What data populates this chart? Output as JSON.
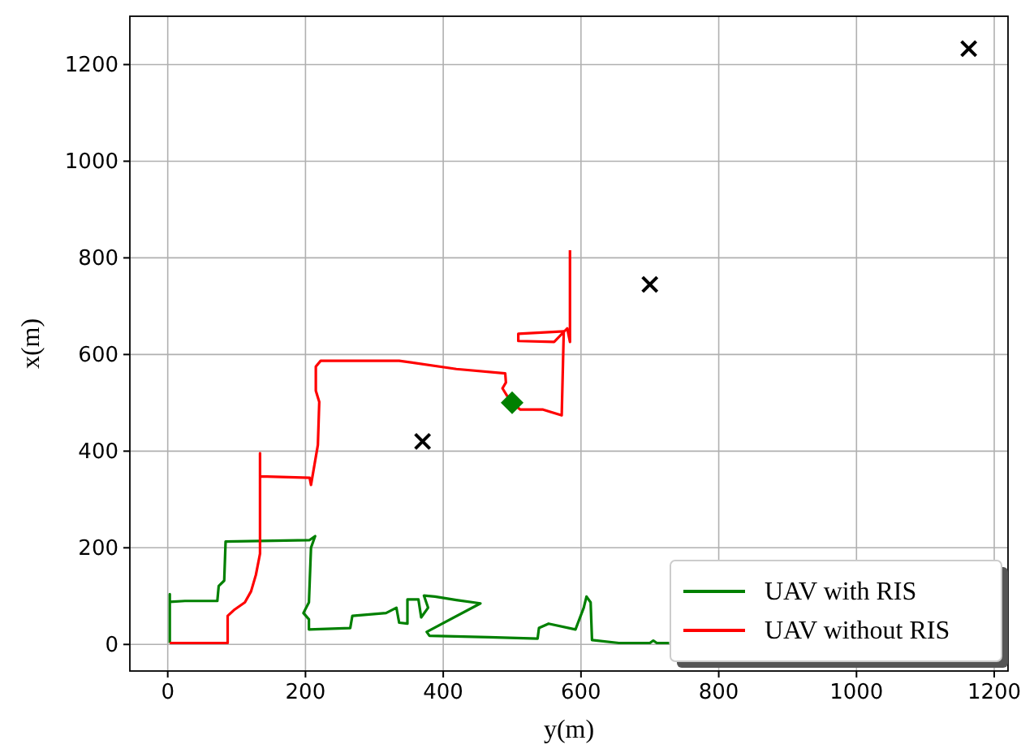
{
  "chart_data": {
    "type": "line",
    "xlabel": "y(m)",
    "ylabel": "x(m)",
    "xlim": [
      -55,
      1220
    ],
    "ylim": [
      -55,
      1300
    ],
    "xticks": [
      0,
      200,
      400,
      600,
      800,
      1000,
      1200
    ],
    "yticks": [
      0,
      200,
      400,
      600,
      800,
      1000,
      1200
    ],
    "grid": true,
    "legend": "bottom right",
    "line_style": "solid",
    "series": [
      {
        "name": "UAV with RIS",
        "color": "#008000",
        "x": [
          3,
          3,
          3,
          25,
          72,
          74,
          82,
          84,
          206,
          214,
          208,
          205,
          197,
          205,
          205,
          265,
          268,
          317,
          332,
          336,
          348,
          348,
          364,
          368,
          378,
          372,
          388,
          419,
          454,
          376,
          380,
          466,
          537,
          539,
          553,
          592,
          604,
          608,
          614,
          616,
          655,
          700,
          705,
          710,
          728
        ],
        "values": [
          3,
          104,
          88,
          90,
          90,
          121,
          132,
          213,
          216,
          224,
          200,
          87,
          65,
          52,
          31,
          34,
          59,
          65,
          76,
          45,
          43,
          93,
          93,
          56,
          76,
          101,
          99,
          92,
          85,
          26,
          18,
          15,
          12,
          34,
          43,
          31,
          76,
          99,
          87,
          9,
          3,
          3,
          8,
          3,
          3
        ]
      },
      {
        "name": "UAV without RIS",
        "color": "#ff0000",
        "x": [
          3,
          87,
          87,
          96,
          112,
          121,
          128,
          134,
          134,
          134,
          206,
          208,
          218,
          220,
          215,
          215,
          222,
          336,
          419,
          490,
          491,
          486,
          498,
          512,
          545,
          572,
          575,
          509,
          509,
          561,
          580,
          584,
          584
        ],
        "values": [
          3,
          3,
          59,
          71,
          87,
          110,
          144,
          188,
          396,
          348,
          345,
          330,
          413,
          502,
          525,
          575,
          587,
          587,
          570,
          561,
          542,
          530,
          502,
          486,
          486,
          474,
          648,
          643,
          628,
          626,
          654,
          626,
          816
        ]
      },
      {
        "type": "scatter",
        "marker": "diamond",
        "color": "#008000",
        "x": [
          500
        ],
        "values": [
          500
        ]
      },
      {
        "type": "scatter",
        "marker": "cross",
        "color": "#000000",
        "x": [
          370,
          700,
          1163
        ],
        "values": [
          420,
          745,
          1233
        ]
      }
    ]
  }
}
